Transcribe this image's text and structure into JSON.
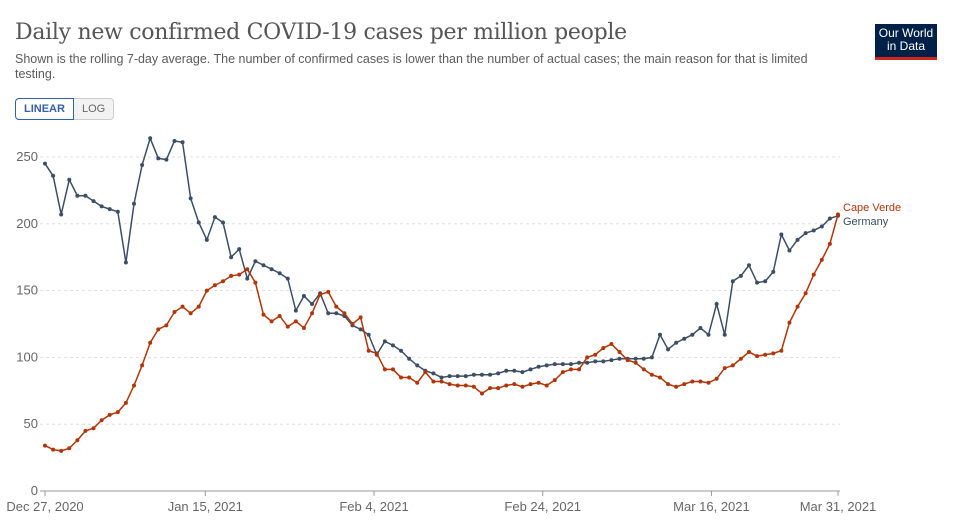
{
  "header": {
    "title": "Daily new confirmed COVID-19 cases per million people",
    "subtitle": "Shown is the rolling 7-day average. The number of confirmed cases is lower than the number of actual cases; the main reason for that is limited testing.",
    "logo_line1": "Our World",
    "logo_line2": "in Data"
  },
  "controls": {
    "linear_label": "LINEAR",
    "log_label": "LOG",
    "selected": "LINEAR"
  },
  "chart_data": {
    "type": "line",
    "title": "Daily new confirmed COVID-19 cases per million people",
    "xlabel": "",
    "ylabel": "",
    "ylim": [
      0,
      260
    ],
    "yticks": [
      0,
      50,
      100,
      150,
      200,
      250
    ],
    "xticks": [
      "Dec 27, 2020",
      "Jan 15, 2021",
      "Feb 4, 2021",
      "Feb 24, 2021",
      "Mar 16, 2021",
      "Mar 31, 2021"
    ],
    "xtick_days": [
      0,
      19,
      39,
      59,
      79,
      94
    ],
    "grid": true,
    "legend": "right-end-labels",
    "series": [
      {
        "name": "Germany",
        "color": "#3c4e66",
        "values": [
          245,
          236,
          207,
          233,
          221,
          221,
          217,
          213,
          211,
          209,
          171,
          215,
          244,
          264,
          249,
          248,
          262,
          261,
          219,
          201,
          188,
          205,
          201,
          175,
          181,
          159,
          172,
          169,
          166,
          163,
          159,
          135,
          146,
          140,
          148,
          133,
          133,
          131,
          124,
          121,
          117,
          102,
          112,
          109,
          105,
          99,
          94,
          90,
          88,
          85,
          86,
          86,
          86,
          87,
          87,
          87,
          88,
          90,
          90,
          89,
          91,
          93,
          94,
          95,
          95,
          95,
          96,
          96,
          97,
          97,
          98,
          99,
          99,
          99,
          99,
          100,
          117,
          106,
          111,
          114,
          117,
          122,
          117,
          140,
          117,
          157,
          161,
          169,
          156,
          157,
          164,
          192,
          180,
          188,
          193,
          195,
          198,
          204,
          206
        ]
      },
      {
        "name": "Cape Verde",
        "color": "#b13507",
        "values": [
          34,
          31,
          30,
          32,
          38,
          45,
          47,
          53,
          57,
          59,
          66,
          79,
          94,
          111,
          121,
          124,
          134,
          138,
          133,
          138,
          150,
          154,
          157,
          161,
          162,
          166,
          156,
          132,
          127,
          131,
          123,
          127,
          122,
          133,
          147,
          149,
          138,
          133,
          125,
          130,
          105,
          103,
          91,
          91,
          85,
          85,
          81,
          89,
          82,
          82,
          80,
          79,
          79,
          78,
          73,
          77,
          77,
          79,
          80,
          78,
          80,
          81,
          79,
          83,
          89,
          91,
          91,
          100,
          102,
          107,
          110,
          104,
          98,
          96,
          91,
          87,
          85,
          80,
          78,
          80,
          82,
          82,
          81,
          84,
          92,
          94,
          99,
          104,
          101,
          102,
          103,
          105,
          126,
          138,
          148,
          162,
          173,
          185,
          207
        ]
      }
    ]
  }
}
